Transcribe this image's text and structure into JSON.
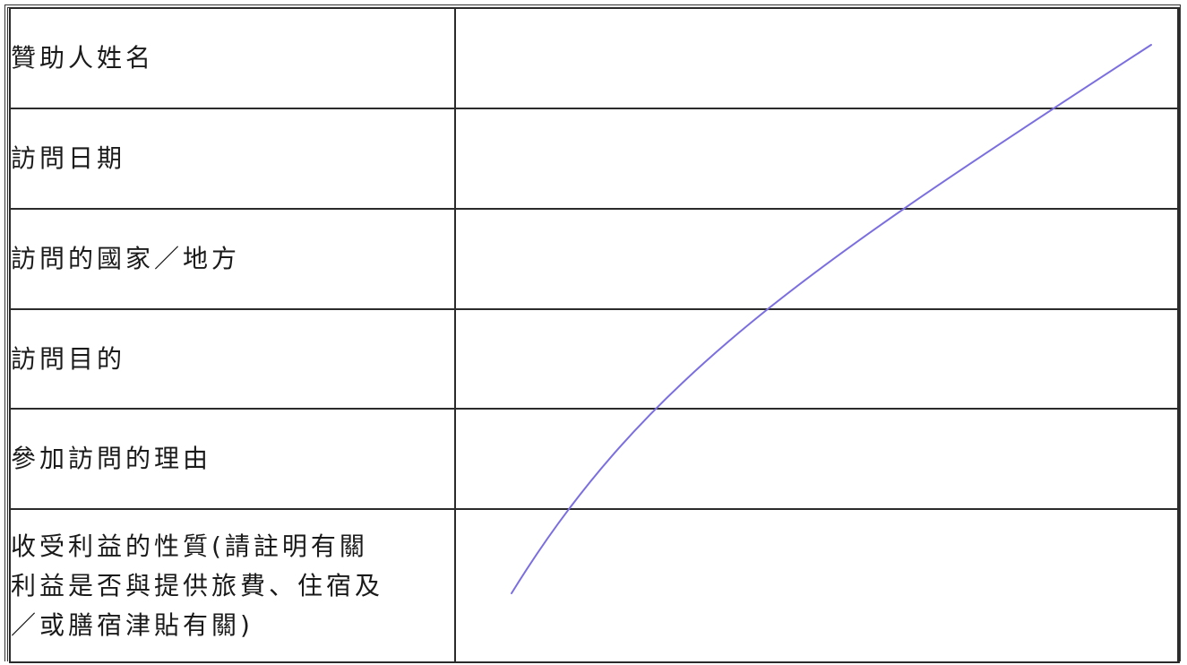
{
  "form": {
    "rows": [
      {
        "label": "贊助人姓名",
        "value": ""
      },
      {
        "label": "訪問日期",
        "value": ""
      },
      {
        "label": "訪問的國家／地方",
        "value": ""
      },
      {
        "label": "訪問目的",
        "value": ""
      },
      {
        "label": "參加訪問的理由",
        "value": ""
      },
      {
        "label": "收受利益的性質(請註明有關\n利益是否與提供旅費、住宿及\n／或膳宿津貼有關)",
        "value": ""
      }
    ]
  },
  "annotation": {
    "type": "strike-through line",
    "color": "#7b6fe0"
  }
}
